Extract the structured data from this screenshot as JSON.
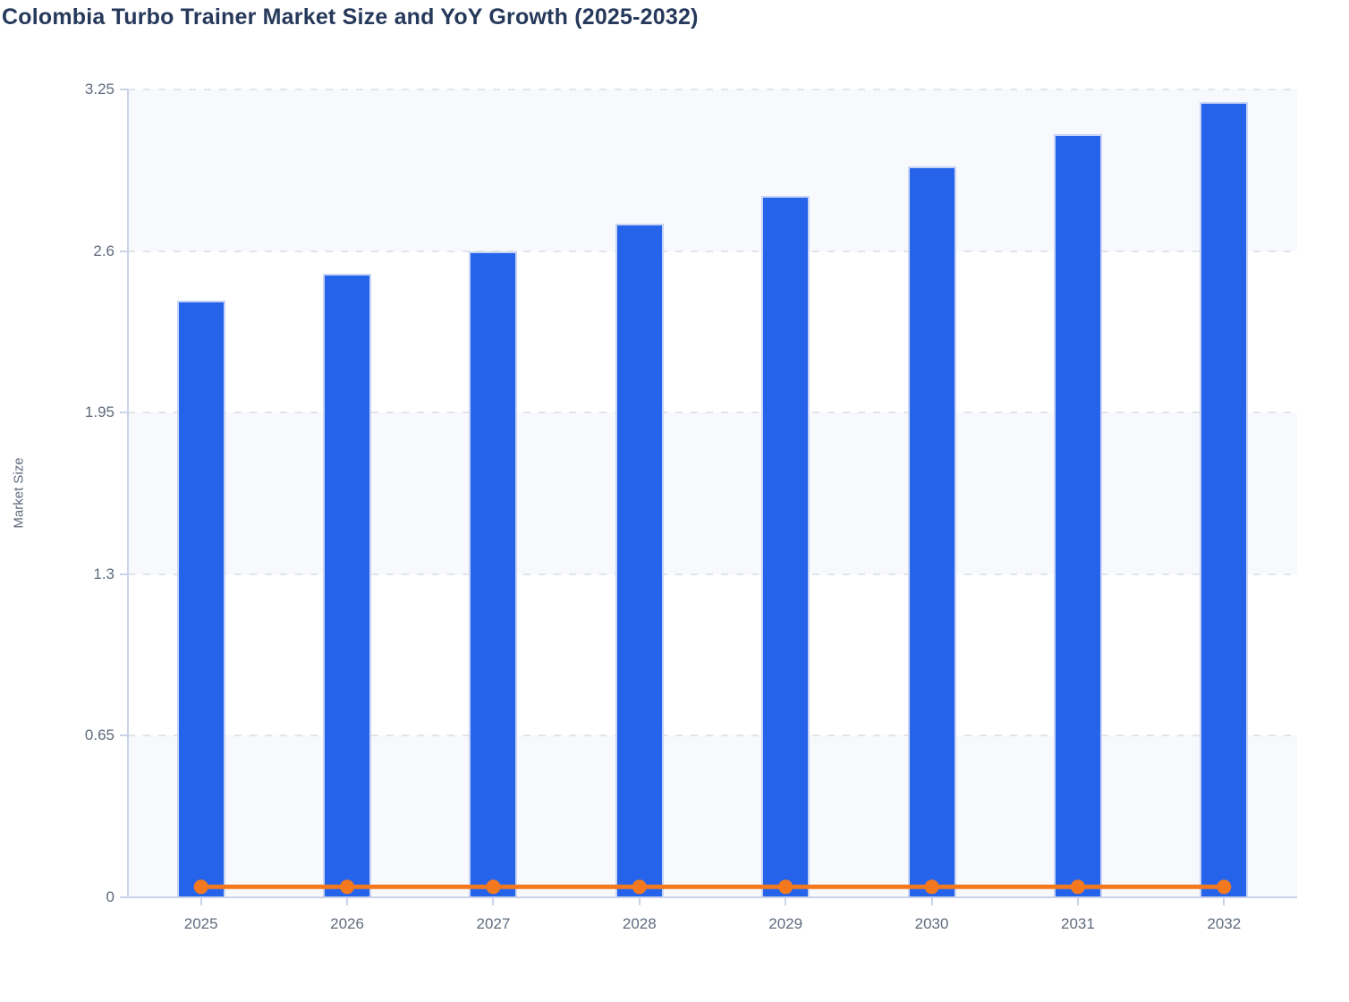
{
  "title": "Colombia Turbo Trainer Market Size and YoY Growth (2025-2032)",
  "colors": {
    "background": "#ffffff",
    "bar": "#2563eb",
    "bar_stroke": "#c7d4f6",
    "line": "#f4791e",
    "title_text": "#26395b",
    "axis_text": "#5f6b7d",
    "grid_line": "#e2e4e9",
    "axis_line": "#c9d2e8",
    "row_stripe": "#f8f9fc"
  },
  "chart_data": {
    "type": "bar+line",
    "title": "Colombia Turbo Trainer Market Size and YoY Growth (2025-2032)",
    "categories": [
      "2025",
      "2026",
      "2027",
      "2028",
      "2029",
      "2030",
      "2031",
      "2032"
    ],
    "series": [
      {
        "name": "Market Size",
        "type": "bar",
        "values": [
          2.4,
          2.51,
          2.6,
          2.71,
          2.82,
          2.94,
          3.07,
          3.2
        ]
      },
      {
        "name": "YoY Growth",
        "type": "line",
        "values": [
          0.042,
          0.042,
          0.042,
          0.042,
          0.042,
          0.042,
          0.042,
          0.042
        ]
      }
    ],
    "xlabel": "",
    "ylabel": "Market Size",
    "ylim": [
      0,
      3.25
    ],
    "yticks": [
      3.25,
      2.6,
      1.95,
      1.3,
      0.65,
      0
    ],
    "ytick_labels": [
      "3.25",
      "2.6",
      "1.95",
      "1.3",
      "0.65",
      "0"
    ],
    "legend": "none",
    "grid": "horizontal-dashed",
    "row_stripes": true
  }
}
